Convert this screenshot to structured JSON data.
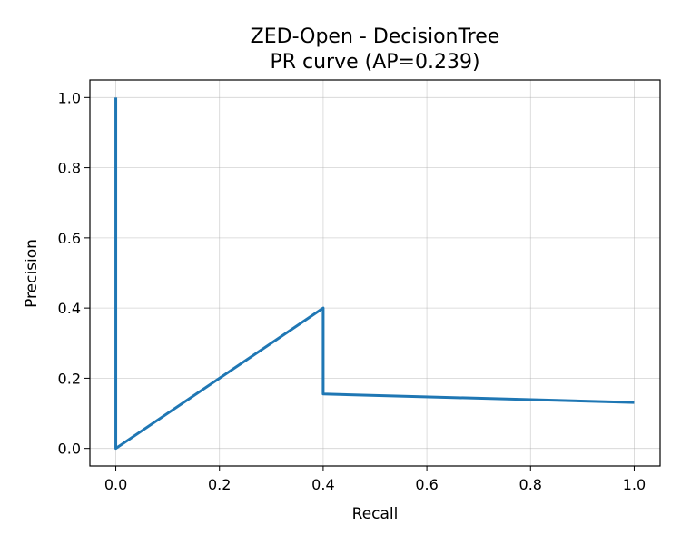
{
  "chart_data": {
    "type": "line",
    "title_line1": "ZED-Open - DecisionTree",
    "title_line2": "PR curve (AP=0.239)",
    "xlabel": "Recall",
    "ylabel": "Precision",
    "xlim": [
      -0.05,
      1.05
    ],
    "ylim": [
      -0.05,
      1.05
    ],
    "grid": true,
    "series_color": "#1f77b4",
    "x_ticks": [
      0.0,
      0.2,
      0.4,
      0.6,
      0.8,
      1.0
    ],
    "x_tick_labels": [
      "0.0",
      "0.2",
      "0.4",
      "0.6",
      "0.8",
      "1.0"
    ],
    "y_ticks": [
      0.0,
      0.2,
      0.4,
      0.6,
      0.8,
      1.0
    ],
    "y_tick_labels": [
      "0.0",
      "0.2",
      "0.4",
      "0.6",
      "0.8",
      "1.0"
    ],
    "series": [
      {
        "x": [
          0.0,
          0.0,
          0.4,
          0.4,
          1.0
        ],
        "y": [
          1.0,
          0.0,
          0.4,
          0.155,
          0.131
        ]
      }
    ]
  }
}
